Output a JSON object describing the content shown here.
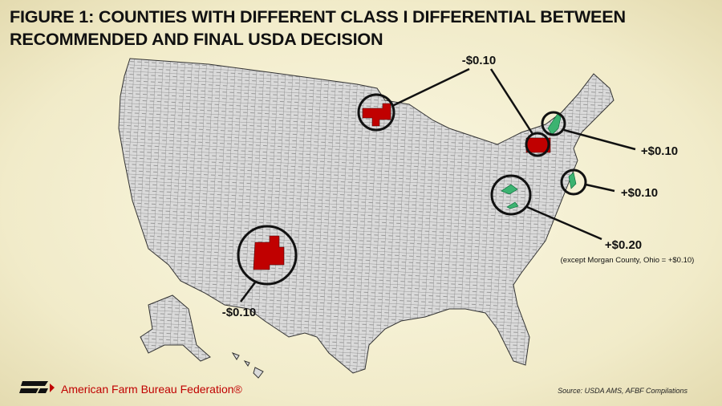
{
  "header": {
    "title_lines": [
      "FIGURE 1: COUNTIES WITH DIFFERENT CLASS I DIFFERENTIAL BETWEEN",
      "RECOMMENDED AND FINAL USDA DECISION"
    ]
  },
  "annotations": [
    {
      "label": "-$0.10"
    },
    {
      "label": "+$0.10"
    },
    {
      "label": "+$0.10"
    },
    {
      "label": "+$0.20",
      "note": "(except Morgan County, Ohio = +$0.10)"
    },
    {
      "label": "-$0.10"
    }
  ],
  "footer": {
    "organization": "American Farm Bureau Federation®",
    "source": "Source: USDA AMS, AFBF Compilations"
  }
}
